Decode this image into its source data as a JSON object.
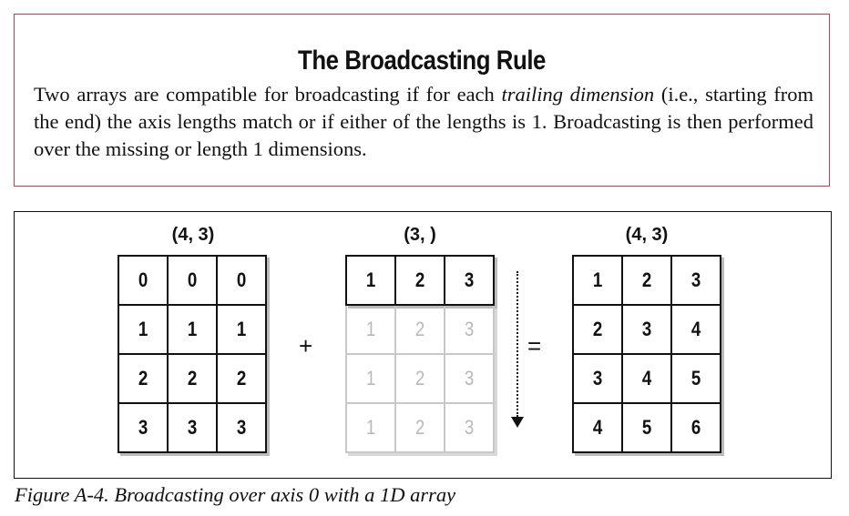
{
  "rule": {
    "title": "The Broadcasting Rule",
    "text_before": "Two arrays are compatible for broadcasting if for each ",
    "text_italic": "trailing dimension",
    "text_after": " (i.e., starting from the end) the axis lengths match or if either of the lengths is 1. Broadcasting is then performed over the missing or length 1 dimensions."
  },
  "figure": {
    "left": {
      "shape": "(4, 3)",
      "rows": [
        [
          "0",
          "0",
          "0"
        ],
        [
          "1",
          "1",
          "1"
        ],
        [
          "2",
          "2",
          "2"
        ],
        [
          "3",
          "3",
          "3"
        ]
      ]
    },
    "plus": "+",
    "middle": {
      "shape": "(3, )",
      "row": [
        "1",
        "2",
        "3"
      ],
      "ghost_rows": [
        [
          "1",
          "2",
          "3"
        ],
        [
          "1",
          "2",
          "3"
        ],
        [
          "1",
          "2",
          "3"
        ]
      ]
    },
    "equals": "=",
    "right": {
      "shape": "(4, 3)",
      "rows": [
        [
          "1",
          "2",
          "3"
        ],
        [
          "2",
          "3",
          "4"
        ],
        [
          "3",
          "4",
          "5"
        ],
        [
          "4",
          "5",
          "6"
        ]
      ]
    },
    "caption": "Figure A-4. Broadcasting over axis 0 with a 1D array"
  }
}
